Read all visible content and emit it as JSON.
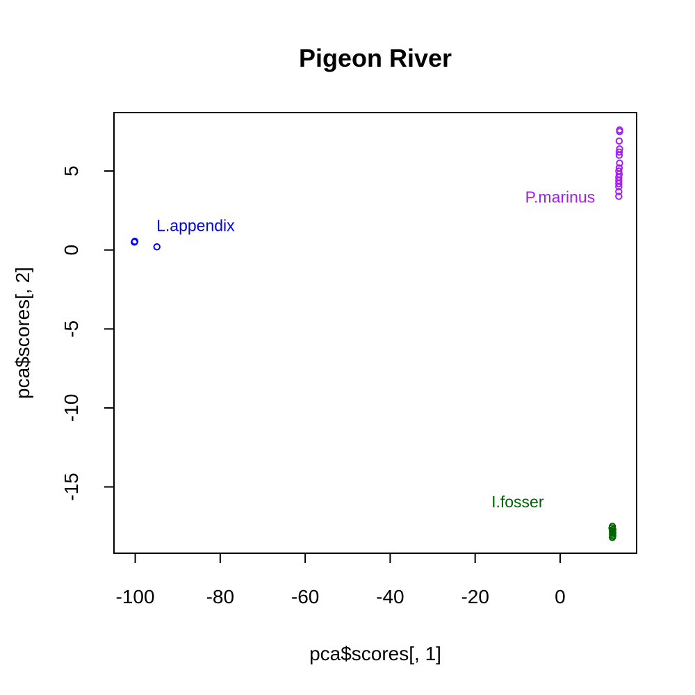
{
  "chart_data": {
    "type": "scatter",
    "title": "Pigeon River",
    "xlabel": "pca$scores[, 1]",
    "ylabel": "pca$scores[, 2]",
    "xlim": [
      -105,
      18
    ],
    "ylim": [
      -19.2,
      8.7
    ],
    "xticks": [
      -100,
      -80,
      -60,
      -40,
      -20,
      0
    ],
    "yticks": [
      -15,
      -10,
      -5,
      0,
      5
    ],
    "grid": false,
    "marker": "open-circle",
    "series": [
      {
        "name": "L.appendix",
        "color": "#0000ff",
        "points": [
          [
            -100.2,
            0.5
          ],
          [
            -100.1,
            0.55
          ],
          [
            -94.9,
            0.2
          ]
        ]
      },
      {
        "name": "P.marinus",
        "color": "#a020f0",
        "points": [
          [
            14.0,
            7.6
          ],
          [
            14.0,
            7.5
          ],
          [
            13.9,
            6.9
          ],
          [
            14.0,
            6.4
          ],
          [
            13.9,
            6.2
          ],
          [
            13.9,
            6.0
          ],
          [
            14.0,
            5.5
          ],
          [
            13.9,
            5.2
          ],
          [
            13.8,
            5.0
          ],
          [
            13.9,
            4.8
          ],
          [
            13.8,
            4.6
          ],
          [
            13.8,
            4.4
          ],
          [
            13.8,
            4.2
          ],
          [
            13.8,
            4.0
          ],
          [
            13.8,
            3.7
          ],
          [
            13.8,
            3.4
          ]
        ]
      },
      {
        "name": "I.fosser",
        "color": "#006400",
        "points": [
          [
            12.2,
            -17.6
          ],
          [
            12.3,
            -17.5
          ],
          [
            12.3,
            -17.8
          ],
          [
            12.4,
            -17.9
          ],
          [
            12.3,
            -18.0
          ],
          [
            12.4,
            -18.1
          ],
          [
            12.3,
            -18.2
          ],
          [
            12.4,
            -17.7
          ]
        ]
      }
    ],
    "annotations": [
      {
        "text": "L.appendix",
        "x": -95,
        "y": 1.2,
        "color": "#0000ff",
        "anchor": "start"
      },
      {
        "text": "P.marinus",
        "x": 0,
        "y": 3.0,
        "color": "#a020f0",
        "anchor": "middle"
      },
      {
        "text": "I.fosser",
        "x": -10,
        "y": -16.3,
        "color": "#006400",
        "anchor": "middle"
      }
    ]
  }
}
